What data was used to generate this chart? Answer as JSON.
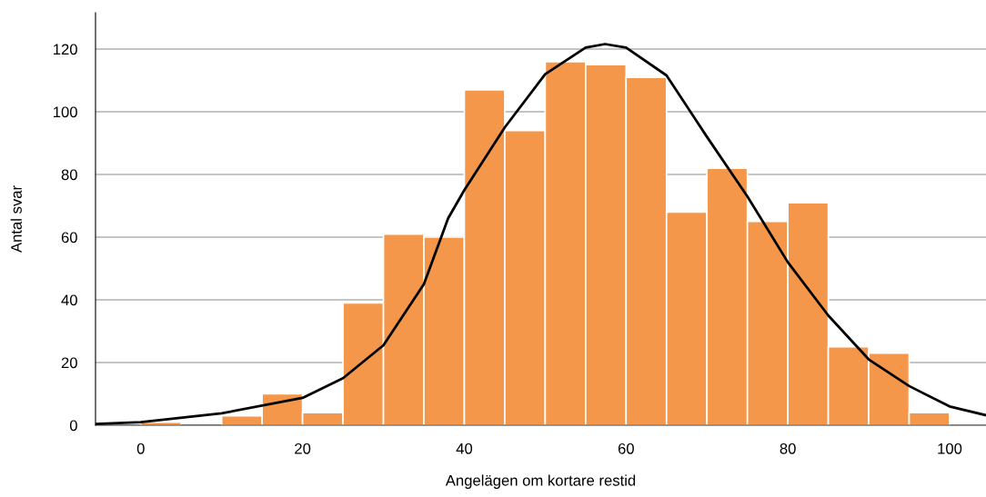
{
  "chart_data": {
    "type": "histogram",
    "xlabel": "Angelägen om kortare restid",
    "ylabel": "Antal svar",
    "bins": [
      0,
      5,
      10,
      15,
      20,
      25,
      30,
      35,
      40,
      45,
      50,
      55,
      60,
      65,
      70,
      75,
      80,
      85,
      90,
      95,
      100
    ],
    "values": [
      1,
      0,
      3,
      10,
      4,
      39,
      61,
      60,
      107,
      94,
      116,
      115,
      111,
      68,
      82,
      65,
      71,
      25,
      23,
      4
    ],
    "color": "#f5974a",
    "series": [
      {
        "type": "line",
        "color": "#000000",
        "x": [
          -5.6,
          0,
          10,
          20,
          25,
          30,
          35,
          38,
          40,
          45,
          50,
          55,
          57.4,
          60,
          65,
          70,
          75,
          80,
          85,
          90,
          95,
          100,
          104.5
        ],
        "values": [
          0.4,
          1,
          3.8,
          8.7,
          15,
          25.5,
          45,
          66,
          75,
          95,
          112,
          120.5,
          121.6,
          120.5,
          111.6,
          92,
          73,
          52,
          35,
          21,
          12.5,
          6,
          3.2
        ]
      }
    ],
    "xlim": [
      -5.6,
      104.5
    ],
    "ylim": [
      0,
      131.6
    ],
    "xticks": [
      0,
      20,
      40,
      60,
      80,
      100
    ],
    "yticks": [
      0,
      20,
      40,
      60,
      80,
      100,
      120
    ],
    "grid": "y",
    "line_style": "solid",
    "marker": "none"
  }
}
